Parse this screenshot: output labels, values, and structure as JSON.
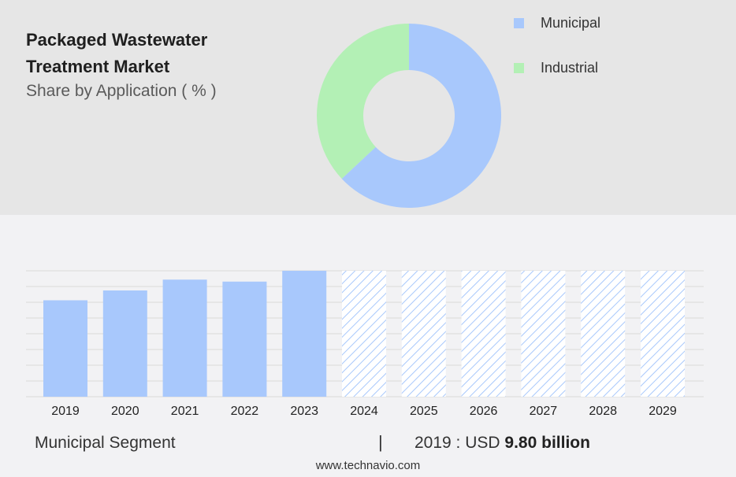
{
  "title": "Packaged Wastewater Treatment Market",
  "subtitle": "Share by Application ( % )",
  "footer": {
    "segment_label": "Municipal Segment",
    "separator": "|",
    "value_prefix": "2019 : USD",
    "value_bold": "9.80 billion",
    "url": "www.technavio.com"
  },
  "colors": {
    "municipal": "#a8c8fc",
    "industrial": "#b3f0b5",
    "bar": "#a8c8fc",
    "forecast_hatch": "#a8c8fc"
  },
  "chart_data": [
    {
      "type": "pie",
      "variant": "donut",
      "title": "Share by Application ( % )",
      "legend_position": "top-right",
      "labels": [
        "Municipal",
        "Industrial"
      ],
      "values": [
        63,
        37
      ]
    },
    {
      "type": "bar",
      "categories": [
        "2019",
        "2020",
        "2021",
        "2022",
        "2023",
        "2024",
        "2025",
        "2026",
        "2027",
        "2028",
        "2029"
      ],
      "values": [
        9.8,
        10.8,
        11.9,
        11.7,
        12.8,
        12.8,
        12.8,
        12.8,
        12.8,
        12.8,
        12.8
      ],
      "forecast": [
        false,
        false,
        false,
        false,
        false,
        true,
        true,
        true,
        true,
        true,
        true
      ],
      "ylim": [
        0,
        12.8
      ],
      "grid": true,
      "xlabel": "",
      "ylabel": ""
    }
  ]
}
